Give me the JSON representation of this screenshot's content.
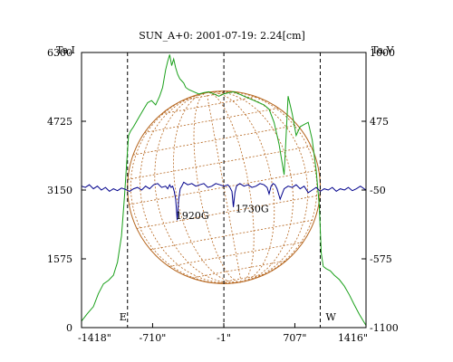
{
  "chart_data": {
    "type": "line",
    "title": "SUN_A+0: 2001-07-19: 2.24[cm]",
    "left_axis": {
      "label": "Ta,I",
      "ticks": [
        0,
        1575,
        3150,
        4725,
        6300
      ],
      "range": [
        0,
        6300
      ]
    },
    "right_axis": {
      "label": "Ta,V",
      "ticks": [
        -1100,
        -575,
        -50,
        475,
        1000
      ],
      "tick_labels": [
        "-1100",
        "-575",
        "-50",
        "475",
        "1000"
      ],
      "range": [
        -1100,
        1000
      ]
    },
    "x_axis": {
      "tick_values": [
        -1418,
        -710,
        -1,
        707,
        1416
      ],
      "tick_labels": [
        "-1418\"",
        "-710\"",
        "-1\"",
        "707\"",
        "1416\""
      ],
      "range": [
        -1418,
        1416
      ]
    },
    "limb_markers": [
      {
        "label": "E",
        "x": -960
      },
      {
        "label": "W",
        "x": 960
      }
    ],
    "center_marker": {
      "x": 0
    },
    "solar_disk": {
      "radius_arcsec": 960,
      "color": "#b5651d"
    },
    "annotations": [
      {
        "text": "1920G",
        "x": -480,
        "y_v": -270
      },
      {
        "text": "1730G",
        "x": 115,
        "y_v": -220
      }
    ],
    "series": [
      {
        "name": "Ta,I",
        "axis": "left",
        "color": "#1aa01a",
        "x": [
          -1418,
          -1360,
          -1300,
          -1250,
          -1200,
          -1150,
          -1100,
          -1060,
          -1020,
          -990,
          -970,
          -950,
          -930,
          -900,
          -850,
          -800,
          -760,
          -720,
          -680,
          -640,
          -610,
          -580,
          -560,
          -540,
          -520,
          -500,
          -480,
          -460,
          -440,
          -420,
          -400,
          -380,
          -350,
          -300,
          -250,
          -200,
          -150,
          -100,
          -50,
          0,
          50,
          100,
          150,
          200,
          250,
          300,
          350,
          400,
          450,
          500,
          550,
          600,
          640,
          680,
          720,
          760,
          800,
          840,
          880,
          920,
          950,
          970,
          990,
          1020,
          1060,
          1100,
          1150,
          1200,
          1250,
          1300,
          1350,
          1416
        ],
        "values": [
          150,
          320,
          480,
          780,
          1000,
          1080,
          1200,
          1500,
          2100,
          3000,
          3700,
          4400,
          4500,
          4600,
          4800,
          5000,
          5150,
          5200,
          5100,
          5300,
          5500,
          5900,
          6100,
          6250,
          6000,
          6150,
          5950,
          5800,
          5700,
          5650,
          5600,
          5500,
          5450,
          5400,
          5350,
          5380,
          5400,
          5350,
          5300,
          5350,
          5380,
          5400,
          5350,
          5300,
          5250,
          5200,
          5150,
          5100,
          5000,
          4700,
          4200,
          3500,
          5300,
          4900,
          4400,
          4600,
          4650,
          4700,
          4300,
          3600,
          2800,
          1700,
          1400,
          1350,
          1300,
          1200,
          1100,
          950,
          750,
          520,
          300,
          50
        ]
      },
      {
        "name": "Ta,V",
        "axis": "right",
        "color": "#00008b",
        "x": [
          -1418,
          -1380,
          -1340,
          -1300,
          -1260,
          -1220,
          -1180,
          -1140,
          -1100,
          -1060,
          -1020,
          -980,
          -940,
          -900,
          -860,
          -820,
          -780,
          -740,
          -700,
          -660,
          -620,
          -580,
          -560,
          -540,
          -525,
          -510,
          -495,
          -480,
          -465,
          -450,
          -435,
          -420,
          -400,
          -360,
          -320,
          -280,
          -240,
          -200,
          -160,
          -120,
          -80,
          -40,
          0,
          40,
          60,
          80,
          95,
          110,
          125,
          140,
          160,
          200,
          240,
          280,
          320,
          360,
          400,
          430,
          450,
          470,
          490,
          510,
          530,
          560,
          600,
          640,
          680,
          720,
          760,
          800,
          840,
          880,
          920,
          960,
          1000,
          1040,
          1080,
          1120,
          1160,
          1200,
          1240,
          1280,
          1320,
          1360,
          1416
        ],
        "values": [
          -20,
          -30,
          -10,
          -40,
          -20,
          -50,
          -30,
          -60,
          -40,
          -55,
          -35,
          -45,
          -60,
          -40,
          -30,
          -50,
          -20,
          -40,
          -10,
          0,
          -30,
          -20,
          -40,
          -10,
          -30,
          -20,
          -60,
          -120,
          -280,
          -120,
          -40,
          -20,
          10,
          -10,
          0,
          -20,
          -10,
          0,
          -30,
          -20,
          0,
          -10,
          -20,
          -10,
          -30,
          -60,
          -180,
          -70,
          -20,
          -10,
          0,
          -20,
          -10,
          -30,
          -20,
          0,
          -10,
          -30,
          -80,
          -20,
          0,
          -10,
          -40,
          -120,
          -40,
          -20,
          -30,
          -10,
          -40,
          -20,
          -70,
          -50,
          -30,
          -60,
          -40,
          -50,
          -30,
          -60,
          -40,
          -50,
          -30,
          -55,
          -40,
          -20,
          -50
        ]
      }
    ]
  }
}
